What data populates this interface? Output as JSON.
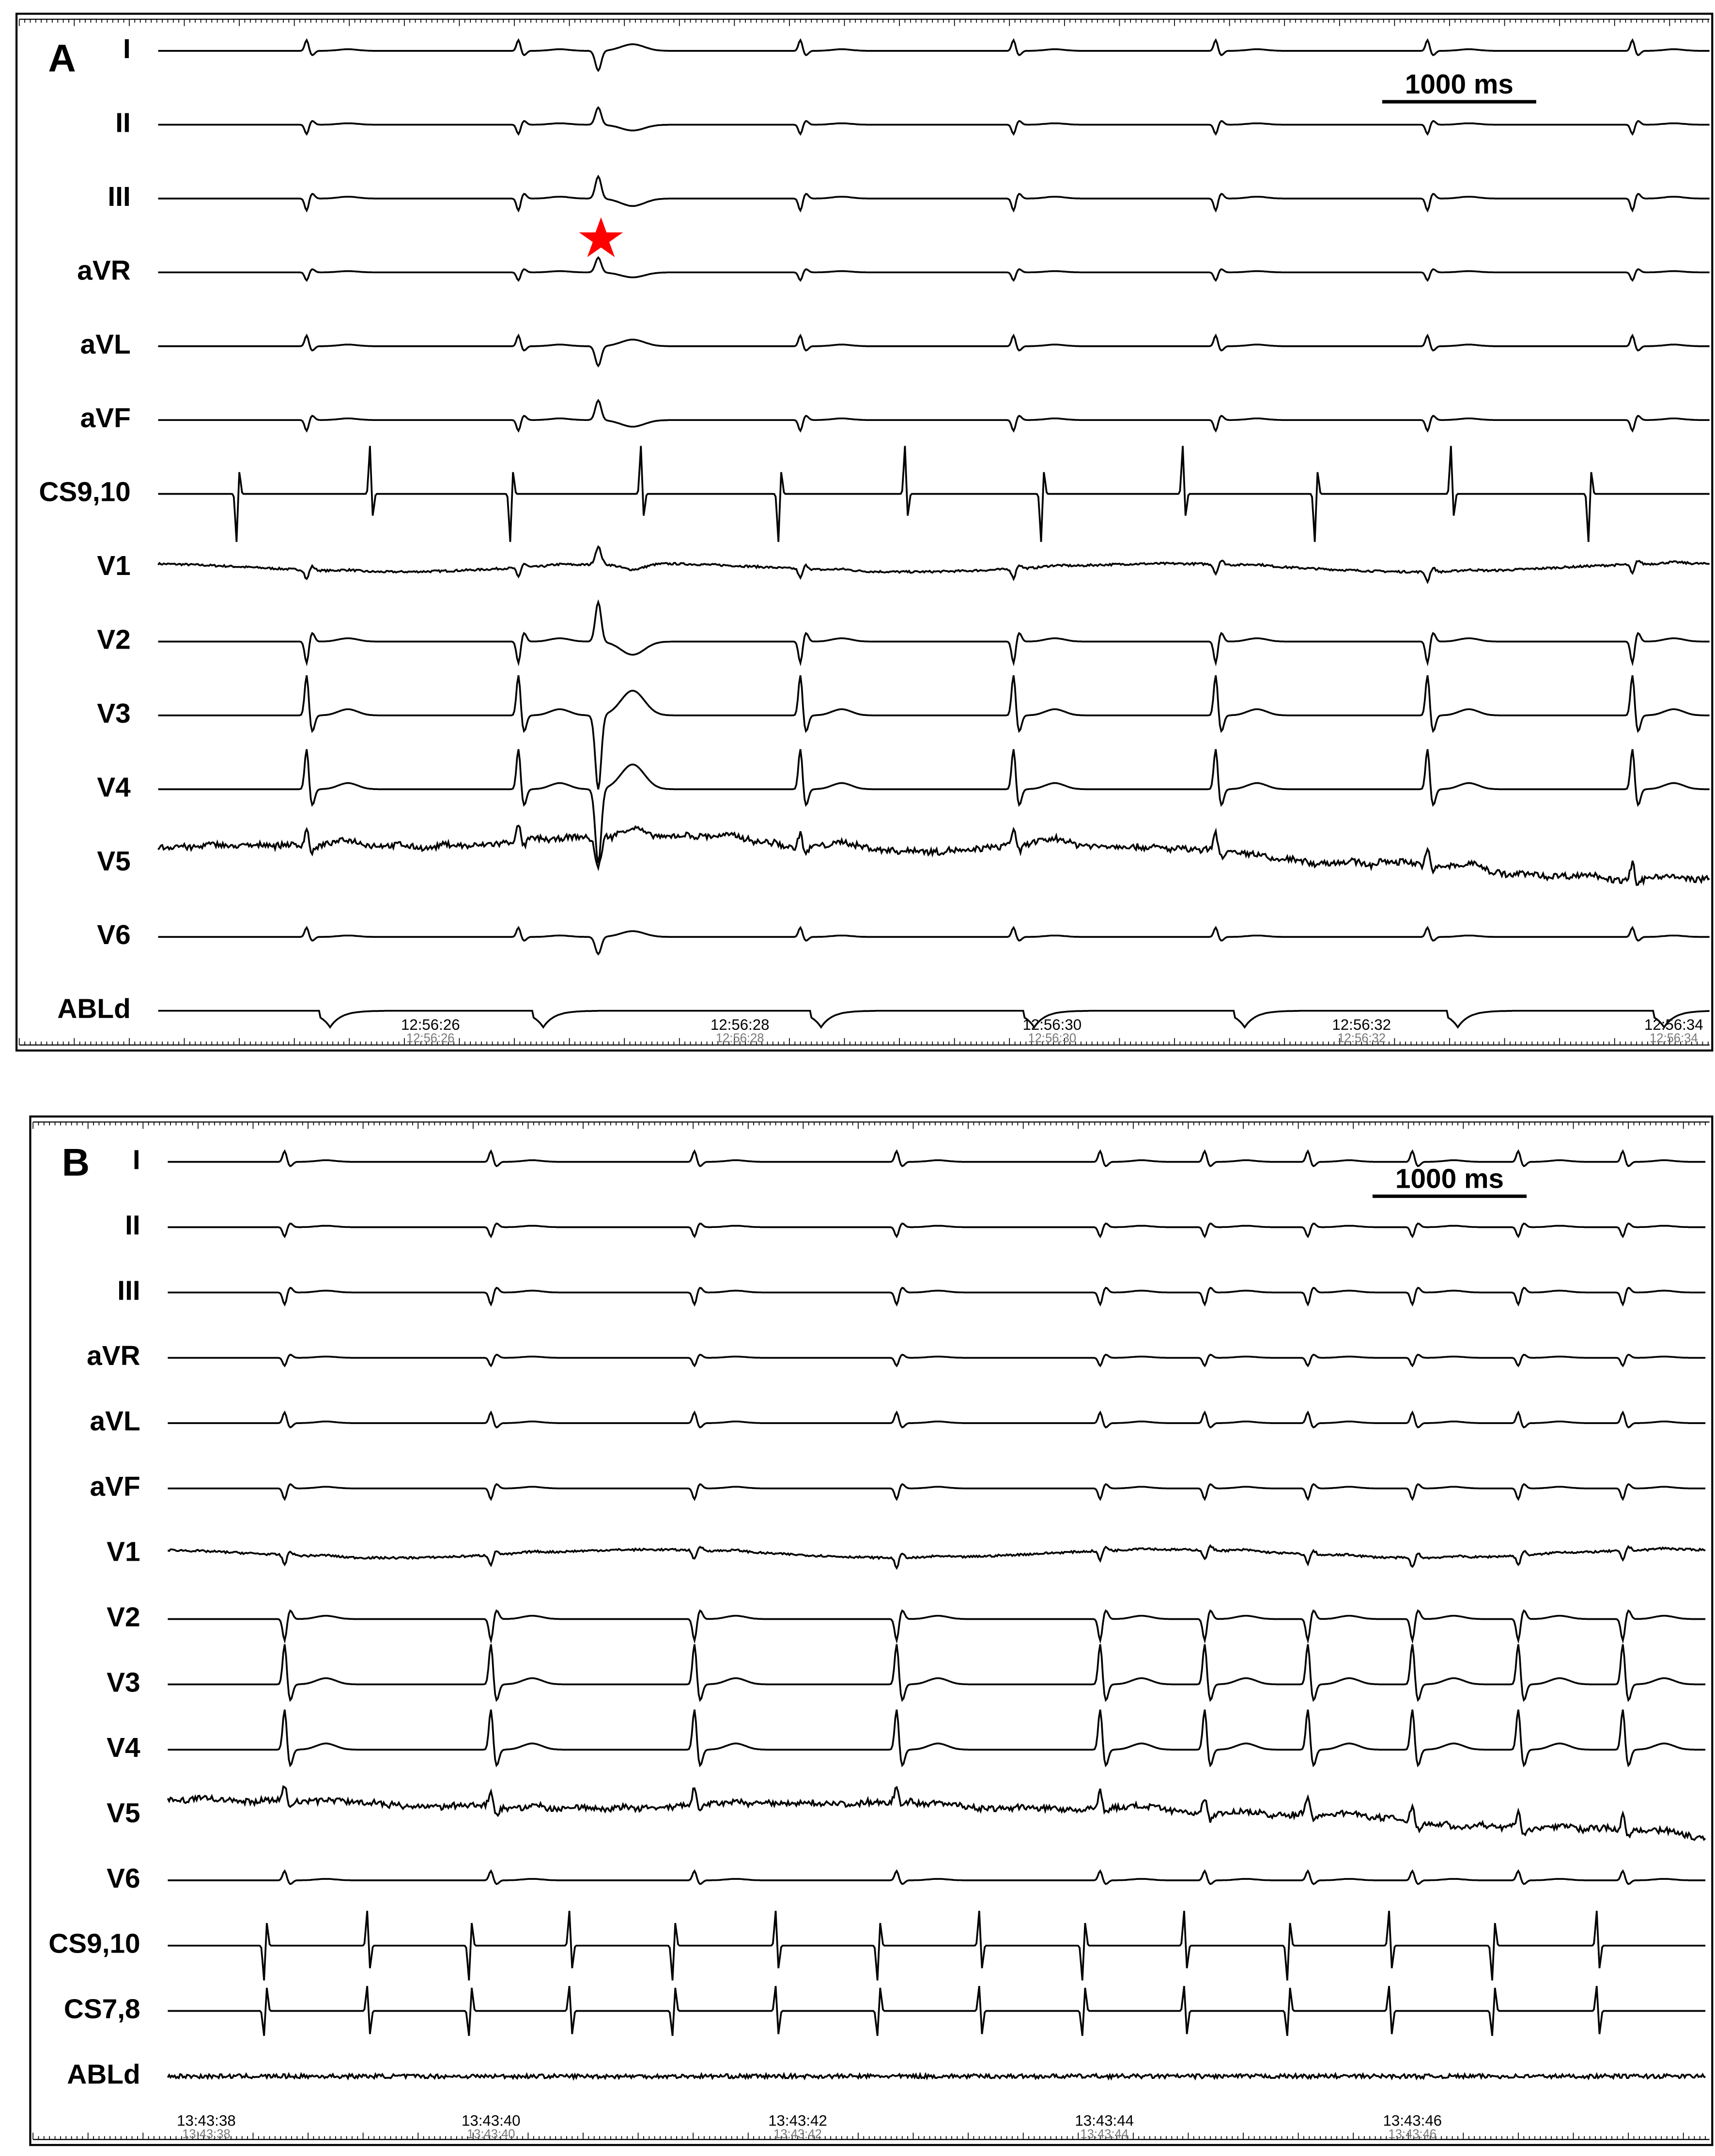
{
  "panels": [
    {
      "label": "A",
      "scale_bar": "1000 ms",
      "leads": [
        "I",
        "II",
        "III",
        "aVR",
        "aVL",
        "aVF",
        "CS9,10",
        "V1",
        "V2",
        "V3",
        "V4",
        "V5",
        "V6",
        "ABLd"
      ],
      "timestamps": [
        "12:56:26",
        "12:56:28",
        "12:56:30",
        "12:56:32",
        "12:56:34"
      ]
    },
    {
      "label": "B",
      "scale_bar": "1000 ms",
      "leads": [
        "I",
        "II",
        "III",
        "aVR",
        "aVL",
        "aVF",
        "V1",
        "V2",
        "V3",
        "V4",
        "V5",
        "V6",
        "CS9,10",
        "CS7,8",
        "ABLd"
      ],
      "timestamps": [
        "13:43:38",
        "13:43:40",
        "13:43:42",
        "13:43:44",
        "13:43:46"
      ]
    }
  ]
}
